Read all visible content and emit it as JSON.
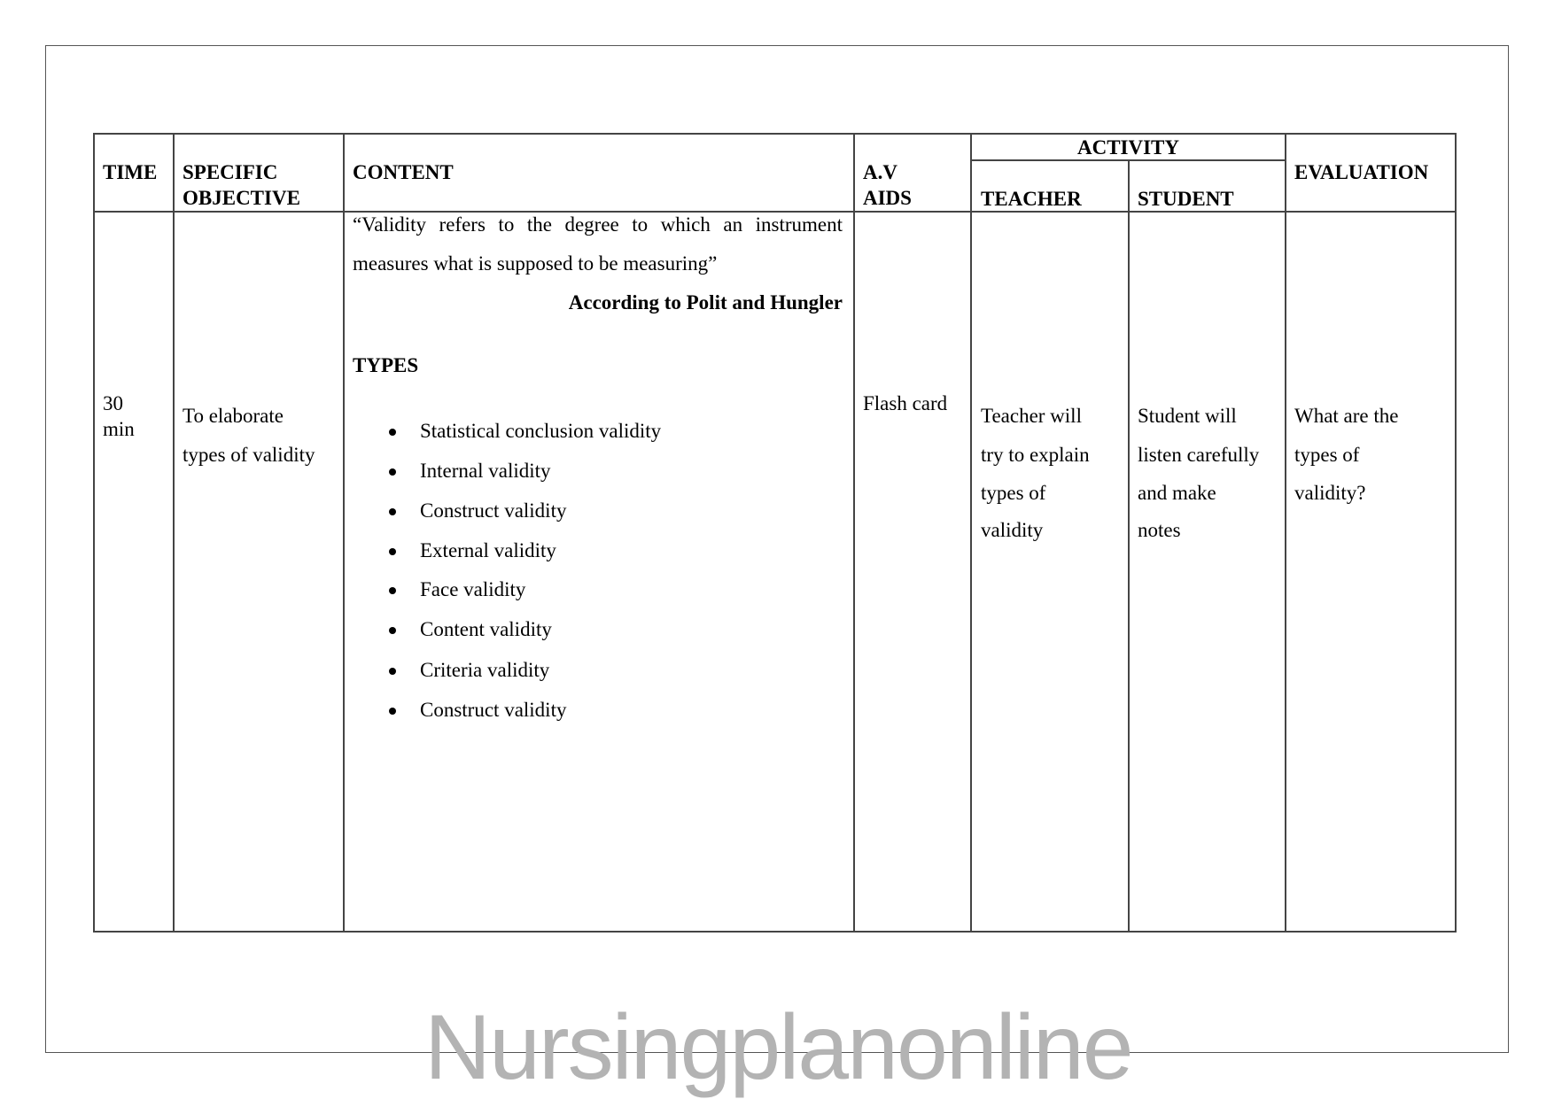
{
  "table": {
    "headers": {
      "time": "TIME",
      "specific_objective": [
        "SPECIFIC",
        "OBJECTIVE"
      ],
      "content": "CONTENT",
      "av_aids": [
        "A.V",
        "AIDS"
      ],
      "activity": "ACTIVITY",
      "teacher": "TEACHER",
      "student": "STUDENT",
      "evaluation": "EVALUATION"
    },
    "row": {
      "time": [
        "30",
        "min"
      ],
      "objective": [
        "To elaborate",
        "types of validity"
      ],
      "content": {
        "definition": [
          "“Validity refers to the degree to which an instrument",
          "measures what is supposed to be measuring”"
        ],
        "citation": "According to Polit and Hungler",
        "types_heading": "TYPES",
        "types": [
          "Statistical conclusion validity",
          "Internal validity",
          "Construct validity",
          "External validity",
          "Face validity",
          "Content validity",
          "Criteria validity",
          "Construct validity"
        ]
      },
      "av_aids": "Flash card",
      "teacher": [
        "Teacher will",
        "try to explain",
        "types of",
        "validity"
      ],
      "student": [
        "Student will",
        "listen carefully",
        "and make",
        "notes"
      ],
      "evaluation": [
        "What are the",
        "types of",
        "validity?"
      ]
    }
  },
  "watermark": "Nursingplanonline"
}
